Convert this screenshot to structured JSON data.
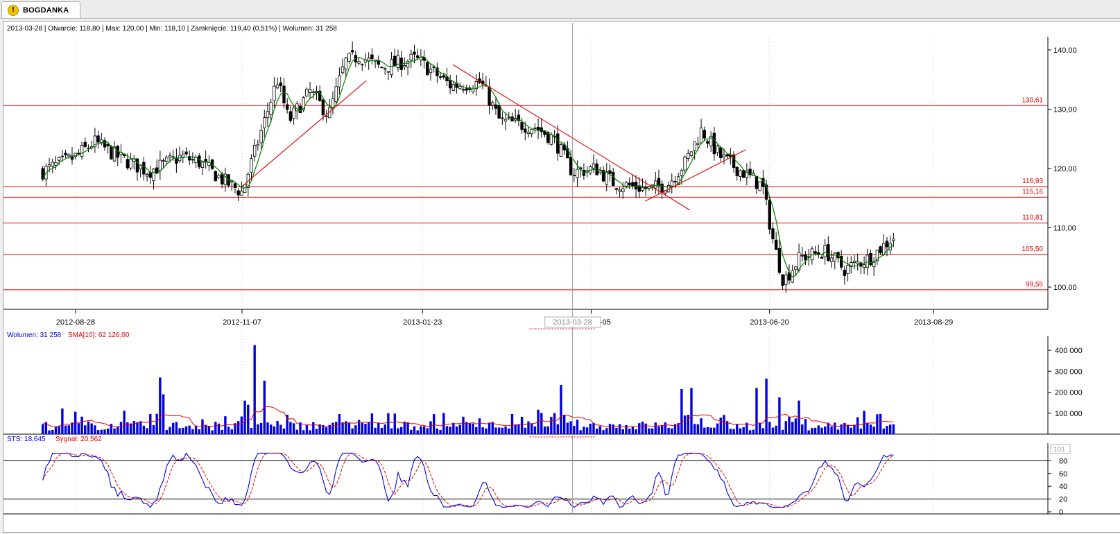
{
  "tab": {
    "title": "BOGDANKA",
    "icon": "warning-icon"
  },
  "header": {
    "info": "2013-03-28 | Otwarcie: 118,80 | Max: 120,00 | Min: 118,10 | Zamknięcie: 119,40 (0,51%) | Wolumen: 31 258"
  },
  "colors": {
    "candle": "#000000",
    "sma": "#008000",
    "levels": "#e00000",
    "volume": "#0000e0",
    "signal": "#e00000",
    "crosshair": "#9a9a9a"
  },
  "chart_data": [
    {
      "type": "candlestick",
      "title": "BOGDANKA",
      "x_ticks": [
        "2012-08-28",
        "2012-11-07",
        "2013-01-23",
        "2013-04-05",
        "2013-06-20",
        "2013-08-29"
      ],
      "crosshair_date": "2013-03-28",
      "y_ticks": [
        "100,00",
        "110,00",
        "120,00",
        "130,00",
        "140,00"
      ],
      "ylim": [
        95,
        143
      ],
      "close_path": [
        {
          "d": "2012-08-14",
          "v": 119.5
        },
        {
          "d": "2012-08-28",
          "v": 122
        },
        {
          "d": "2012-09-05",
          "v": 124.5
        },
        {
          "d": "2012-09-15",
          "v": 122
        },
        {
          "d": "2012-09-28",
          "v": 119.5
        },
        {
          "d": "2012-10-12",
          "v": 122
        },
        {
          "d": "2012-10-20",
          "v": 121
        },
        {
          "d": "2012-10-30",
          "v": 118
        },
        {
          "d": "2012-11-07",
          "v": 116
        },
        {
          "d": "2012-11-15",
          "v": 126
        },
        {
          "d": "2012-11-22",
          "v": 135
        },
        {
          "d": "2012-11-27",
          "v": 128
        },
        {
          "d": "2012-12-06",
          "v": 133
        },
        {
          "d": "2012-12-14",
          "v": 129
        },
        {
          "d": "2012-12-21",
          "v": 138
        },
        {
          "d": "2012-12-27",
          "v": 139
        },
        {
          "d": "2013-01-05",
          "v": 137
        },
        {
          "d": "2013-01-20",
          "v": 138.5
        },
        {
          "d": "2013-02-04",
          "v": 134
        },
        {
          "d": "2013-02-17",
          "v": 134.5
        },
        {
          "d": "2013-02-25",
          "v": 128
        },
        {
          "d": "2013-03-12",
          "v": 127
        },
        {
          "d": "2013-03-20",
          "v": 125
        },
        {
          "d": "2013-03-28",
          "v": 119.4
        },
        {
          "d": "2013-04-07",
          "v": 120
        },
        {
          "d": "2013-04-15",
          "v": 117.5
        },
        {
          "d": "2013-04-30",
          "v": 116.5
        },
        {
          "d": "2013-05-08",
          "v": 117.5
        },
        {
          "d": "2013-05-15",
          "v": 121
        },
        {
          "d": "2013-05-22",
          "v": 126.5
        },
        {
          "d": "2013-05-30",
          "v": 122
        },
        {
          "d": "2013-06-10",
          "v": 119
        },
        {
          "d": "2013-06-17",
          "v": 117
        },
        {
          "d": "2013-06-22",
          "v": 107
        },
        {
          "d": "2013-06-26",
          "v": 101
        },
        {
          "d": "2013-07-03",
          "v": 105
        },
        {
          "d": "2013-07-14",
          "v": 106
        },
        {
          "d": "2013-07-22",
          "v": 103
        },
        {
          "d": "2013-08-02",
          "v": 105
        },
        {
          "d": "2013-08-12",
          "v": 108.5
        }
      ],
      "trend_lines": [
        {
          "from": {
            "d": "2012-11-07",
            "v": 117
          },
          "to": {
            "d": "2012-12-30",
            "v": 134.8
          }
        },
        {
          "from": {
            "d": "2013-02-05",
            "v": 137.5
          },
          "to": {
            "d": "2013-05-17",
            "v": 113
          }
        },
        {
          "from": {
            "d": "2013-04-28",
            "v": 114.5
          },
          "to": {
            "d": "2013-06-10",
            "v": 123.2
          }
        }
      ],
      "levels": [
        {
          "label": "130,61",
          "value": 130.61
        },
        {
          "label": "116,93",
          "value": 116.93
        },
        {
          "label": "115,16",
          "value": 115.16
        },
        {
          "label": "110,81",
          "value": 110.81
        },
        {
          "label": "105,50",
          "value": 105.5
        },
        {
          "label": "99,55",
          "value": 99.55
        }
      ]
    },
    {
      "type": "bar",
      "title": "Wolumen",
      "legend": {
        "volume": "Wolumen: 31 258",
        "sma": "SMA[10]: 62 126,00"
      },
      "y_ticks": [
        "100 000",
        "200 000",
        "300 000",
        "400 000"
      ],
      "ylim": [
        0,
        440000
      ],
      "spikes": [
        {
          "d": "2012-10-03",
          "v": 270000
        },
        {
          "d": "2012-10-05",
          "v": 190000
        },
        {
          "d": "2012-11-13",
          "v": 425000
        },
        {
          "d": "2012-11-17",
          "v": 255000
        },
        {
          "d": "2012-11-08",
          "v": 160000
        },
        {
          "d": "2012-11-10",
          "v": 140000
        },
        {
          "d": "2013-03-23",
          "v": 235000
        },
        {
          "d": "2013-05-13",
          "v": 215000
        },
        {
          "d": "2013-05-17",
          "v": 220000
        },
        {
          "d": "2013-06-14",
          "v": 220000
        },
        {
          "d": "2013-06-19",
          "v": 265000
        },
        {
          "d": "2013-06-24",
          "v": 175000
        },
        {
          "d": "2013-07-03",
          "v": 160000
        }
      ]
    },
    {
      "type": "line",
      "title": "STS",
      "legend": {
        "sts": "STS: 18,645",
        "signal": "Sygnał: 20,562"
      },
      "y_ticks": [
        "0",
        "20",
        "40",
        "60",
        "80"
      ],
      "marker_value": "101",
      "ylim": [
        0,
        100
      ],
      "h_lines": [
        20,
        80
      ]
    }
  ]
}
